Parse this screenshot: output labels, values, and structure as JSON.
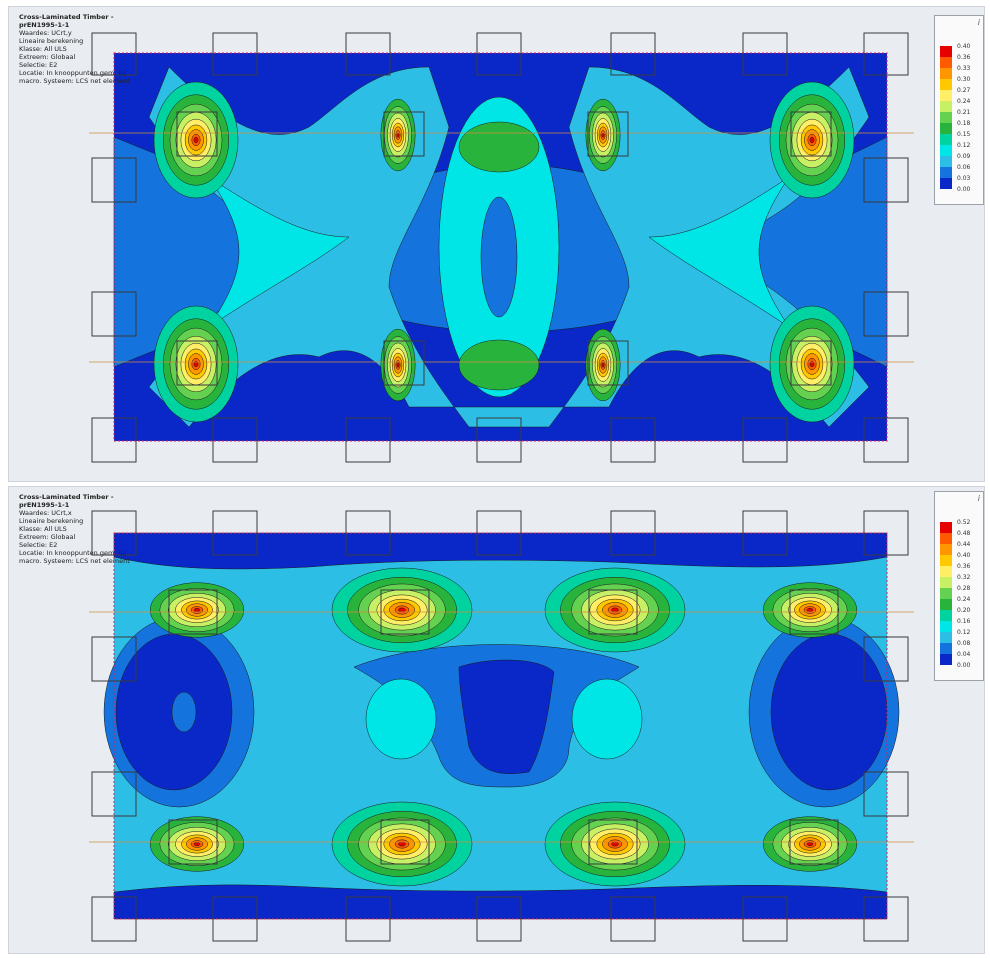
{
  "panels": [
    {
      "info": {
        "title": "Cross-Laminated  Timber -",
        "code": "prEN1995-1-1",
        "lines": [
          "Waardes: UCrt,y",
          "Lineaire berekening",
          "Klasse: All ULS",
          "Extreem: Globaal",
          "Selectie: E2",
          "Locatie: In knooppunten gem. bij",
          "macro. Systeem: LCS net element"
        ]
      },
      "legend": {
        "info_icon": "i",
        "values": [
          "0.40",
          "0.36",
          "0.33",
          "0.30",
          "0.27",
          "0.24",
          "0.21",
          "0.18",
          "0.15",
          "0.12",
          "0.09",
          "0.06",
          "0.03",
          "0.00"
        ]
      }
    },
    {
      "info": {
        "title": "Cross-Laminated  Timber -",
        "code": "prEN1995-1-1",
        "lines": [
          "Waardes: UCrt,x",
          "Lineaire berekening",
          "Klasse: All ULS",
          "Extreem: Globaal",
          "Selectie: E2",
          "Locatie: In knooppunten gem. bij",
          "macro. Systeem: LCS net element"
        ]
      },
      "legend": {
        "info_icon": "i",
        "values": [
          "0.52",
          "0.48",
          "0.44",
          "0.40",
          "0.36",
          "0.32",
          "0.28",
          "0.24",
          "0.20",
          "0.16",
          "0.12",
          "0.08",
          "0.04",
          "0.00"
        ]
      }
    }
  ],
  "colors": {
    "scale": [
      "#e60000",
      "#ff5a00",
      "#ff9600",
      "#ffc800",
      "#ffee66",
      "#c8f064",
      "#64d250",
      "#28b43c",
      "#00d2a0",
      "#00e6e6",
      "#2dbee6",
      "#1473dc",
      "#0a28c8",
      "#0a14a0"
    ],
    "column_line": "#d28c3c",
    "edge_dash": "#dc1e64"
  }
}
